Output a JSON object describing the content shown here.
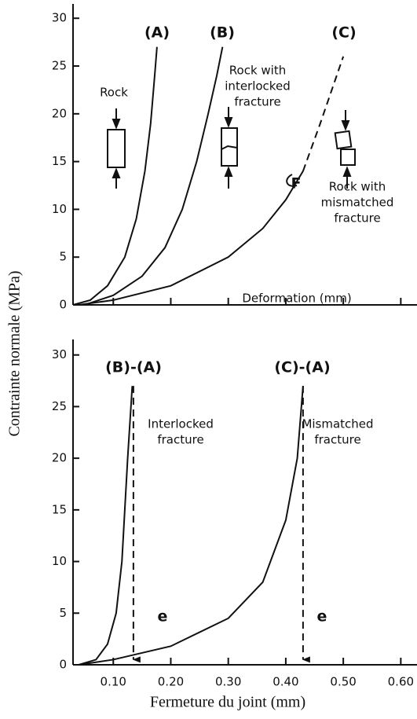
{
  "chart_data": [
    {
      "type": "line",
      "ylabel": "Contrainte normale (MPa)",
      "xlim": [
        0.03,
        0.62
      ],
      "ylim": [
        0,
        31.5
      ],
      "xticks": [
        0.1,
        0.2,
        0.3,
        0.4,
        0.5,
        0.6
      ],
      "xtick_labels": false,
      "yticks": [
        0,
        5,
        10,
        15,
        20,
        25,
        30
      ],
      "color": "#111",
      "series": [
        {
          "x": [
            0.03,
            0.06,
            0.09,
            0.12,
            0.14,
            0.155,
            0.165,
            0.172,
            0.176
          ],
          "values": [
            0,
            0.5,
            2,
            5,
            9,
            14,
            19,
            24,
            27
          ],
          "dashed": false
        },
        {
          "x": [
            0.05,
            0.1,
            0.15,
            0.19,
            0.22,
            0.245,
            0.265,
            0.28,
            0.29
          ],
          "values": [
            0,
            1,
            3,
            6,
            10,
            15,
            20,
            24,
            27
          ],
          "dashed": false
        },
        {
          "x": [
            0.04,
            0.1,
            0.2,
            0.3,
            0.36,
            0.4,
            0.43
          ],
          "values": [
            0,
            0.5,
            2,
            5,
            8,
            11,
            14
          ],
          "dashed": false
        },
        {
          "x": [
            0.43,
            0.46,
            0.48,
            0.5
          ],
          "values": [
            14,
            19,
            22.5,
            26
          ],
          "dashed": true
        }
      ],
      "annotations": [
        [
          "(A)"
        ],
        [
          "(B)"
        ],
        [
          "(C)"
        ],
        [
          "Rock"
        ],
        [
          "Rock with",
          "interlocked",
          "fracture"
        ],
        [
          "F"
        ],
        [
          "Rock with",
          "mismatched",
          "fracture"
        ],
        [
          "Deformation  (mm)"
        ]
      ]
    },
    {
      "type": "line",
      "xlabel": "Fermeture du joint (mm)",
      "xlim": [
        0.03,
        0.62
      ],
      "ylim": [
        0,
        31.5
      ],
      "xticks": [
        {
          "value": 0.1,
          "label": "0.10"
        },
        {
          "value": 0.2,
          "label": "0.20"
        },
        {
          "value": 0.3,
          "label": "0.30"
        },
        {
          "value": 0.4,
          "label": "0.40"
        },
        {
          "value": 0.5,
          "label": "0.50"
        },
        {
          "value": 0.6,
          "label": "0.60"
        }
      ],
      "xtick_labels": true,
      "yticks": [
        0,
        5,
        10,
        15,
        20,
        25,
        30
      ],
      "color": "#111",
      "series": [
        {
          "x": [
            0.04,
            0.07,
            0.09,
            0.105,
            0.115,
            0.12,
            0.125,
            0.133
          ],
          "values": [
            0,
            0.5,
            2,
            5,
            10,
            15,
            20,
            27
          ],
          "dashed": false
        },
        {
          "x": [
            0.135,
            0.135
          ],
          "values": [
            27,
            0.5
          ],
          "dashed": true,
          "arrow": true
        },
        {
          "x": [
            0.04,
            0.1,
            0.2,
            0.3,
            0.36,
            0.4,
            0.42,
            0.43
          ],
          "values": [
            0,
            0.5,
            1.8,
            4.5,
            8,
            14,
            20,
            27
          ],
          "dashed": false
        },
        {
          "x": [
            0.43,
            0.43
          ],
          "values": [
            27,
            0.5
          ],
          "dashed": true,
          "arrow": true
        }
      ],
      "annotations": [
        [
          "(B)-(A)"
        ],
        [
          "(C)-(A)"
        ],
        [
          "Interlocked",
          "fracture"
        ],
        [
          "Mismatched",
          "fracture"
        ],
        [
          "e"
        ],
        [
          "e"
        ]
      ]
    }
  ]
}
